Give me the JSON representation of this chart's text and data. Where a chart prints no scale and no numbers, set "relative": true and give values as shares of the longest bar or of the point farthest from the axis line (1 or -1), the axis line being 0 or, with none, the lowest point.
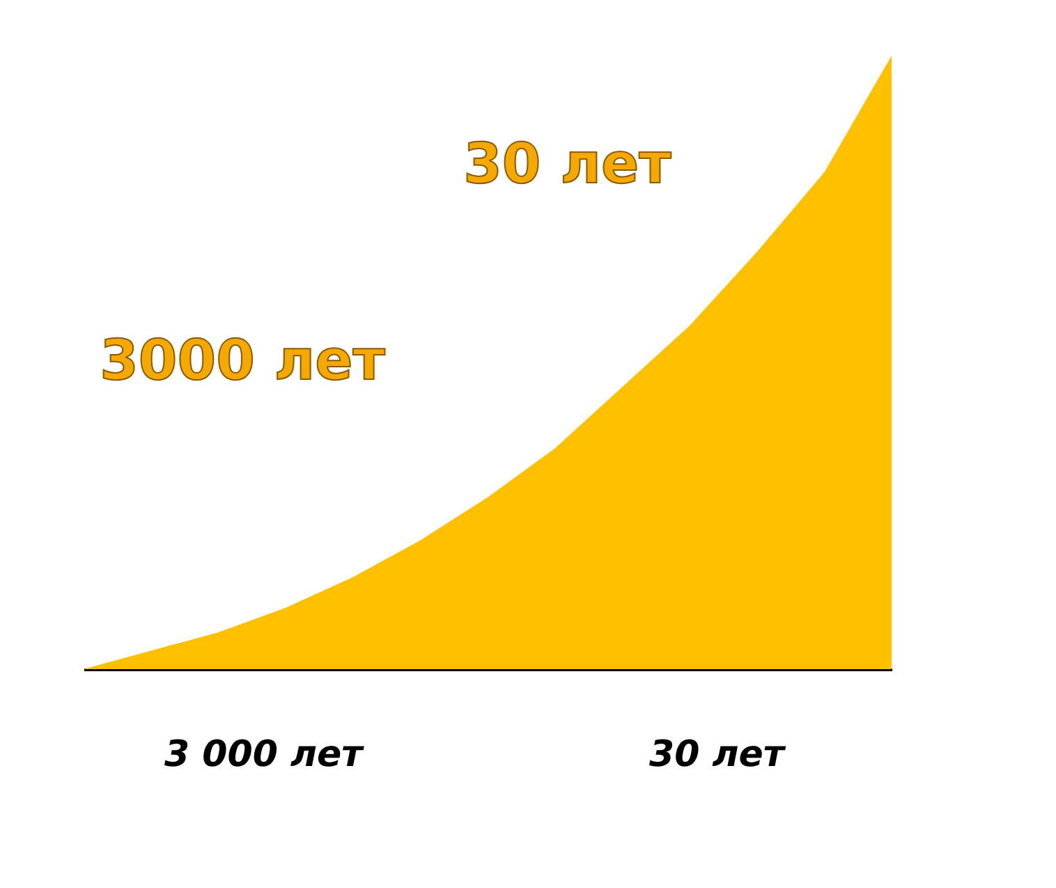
{
  "chart_data": {
    "type": "area",
    "relative": true,
    "tick_labels": false,
    "grid": false,
    "categories": [
      null,
      null,
      null,
      null,
      null,
      null,
      null,
      null,
      null,
      null,
      null,
      null,
      null
    ],
    "series": [
      {
        "color": "#ffc000",
        "values": [
          0.0,
          0.03,
          0.06,
          0.1,
          0.15,
          0.21,
          0.28,
          0.36,
          0.46,
          0.56,
          0.68,
          0.81,
          1.0
        ]
      }
    ],
    "annotations": [
      "30 лет",
      "3000 лет",
      "3 000 лет",
      "30 лет"
    ]
  }
}
